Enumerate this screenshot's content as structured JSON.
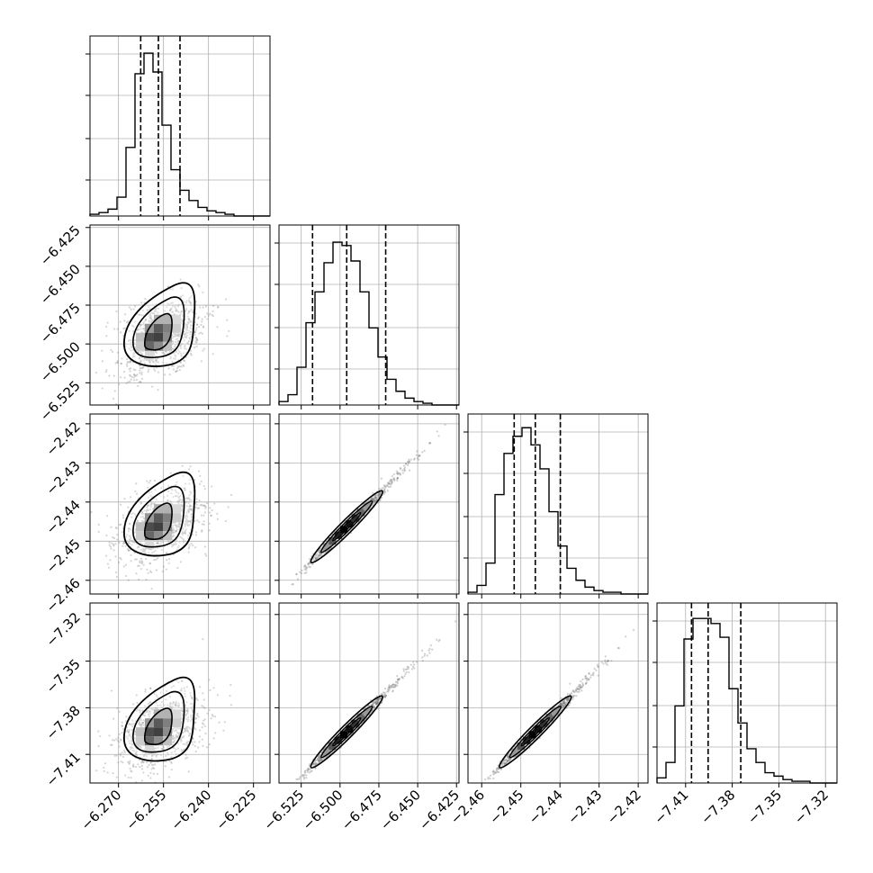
{
  "chart_data": {
    "type": "corner",
    "grid": true,
    "parameters": [
      {
        "ticks": [
          -6.27,
          -6.255,
          -6.24,
          -6.225
        ],
        "tick_labels": [
          "−6.270",
          "−6.255",
          "−6.240",
          "−6.225"
        ],
        "range": [
          -6.2795,
          -6.2195
        ],
        "quantiles": [
          -6.2626,
          -6.2567,
          -6.2495
        ],
        "hist_counts": [
          1,
          2,
          4,
          11,
          40,
          83,
          95,
          84,
          53,
          27,
          15,
          9,
          5,
          3,
          2,
          1,
          0,
          0,
          0,
          0
        ],
        "hist_count_ticks": [
          50,
          100,
          150,
          200
        ]
      },
      {
        "ticks": [
          -6.525,
          -6.5,
          -6.475,
          -6.45,
          -6.425
        ],
        "tick_labels": [
          "−6.525",
          "−6.500",
          "−6.475",
          "−6.450",
          "−6.425"
        ],
        "range": [
          -6.5393,
          -6.4234
        ],
        "quantiles": [
          -6.5177,
          -6.4957,
          -6.4706
        ],
        "hist_counts": [
          2,
          6,
          22,
          48,
          66,
          83,
          95,
          93,
          84,
          66,
          45,
          28,
          15,
          8,
          4,
          2,
          1,
          0,
          0,
          0
        ],
        "hist_count_ticks": [
          50,
          100,
          150,
          200
        ]
      },
      {
        "ticks": [
          -2.46,
          -2.45,
          -2.44,
          -2.43,
          -2.42
        ],
        "tick_labels": [
          "−2.46",
          "−2.45",
          "−2.44",
          "−2.43",
          "−2.42"
        ],
        "range": [
          -2.4635,
          -2.4175
        ],
        "quantiles": [
          -2.4517,
          -2.4463,
          -2.4399
        ],
        "hist_counts": [
          1,
          5,
          18,
          58,
          82,
          92,
          97,
          87,
          73,
          48,
          28,
          15,
          8,
          4,
          2,
          1,
          1,
          0,
          0,
          0
        ],
        "hist_count_ticks": [
          50,
          100,
          150,
          200
        ]
      },
      {
        "ticks": [
          -7.41,
          -7.38,
          -7.35,
          -7.32
        ],
        "tick_labels": [
          "−7.41",
          "−7.38",
          "−7.35",
          "−7.32"
        ],
        "range": [
          -7.4284,
          -7.3126
        ],
        "quantiles": [
          -7.4062,
          -7.3955,
          -7.3745
        ],
        "hist_counts": [
          3,
          12,
          45,
          84,
          96,
          96,
          93,
          85,
          55,
          35,
          20,
          12,
          6,
          4,
          2,
          1,
          1,
          0,
          0,
          0
        ],
        "hist_count_ticks": [
          50,
          100,
          150,
          200
        ]
      }
    ],
    "pair_relations": [
      {
        "i": 1,
        "j": 0,
        "kind": "blob"
      },
      {
        "i": 2,
        "j": 0,
        "kind": "blob"
      },
      {
        "i": 3,
        "j": 0,
        "kind": "blob"
      },
      {
        "i": 2,
        "j": 1,
        "kind": "line"
      },
      {
        "i": 3,
        "j": 1,
        "kind": "line"
      },
      {
        "i": 3,
        "j": 2,
        "kind": "line"
      }
    ]
  }
}
